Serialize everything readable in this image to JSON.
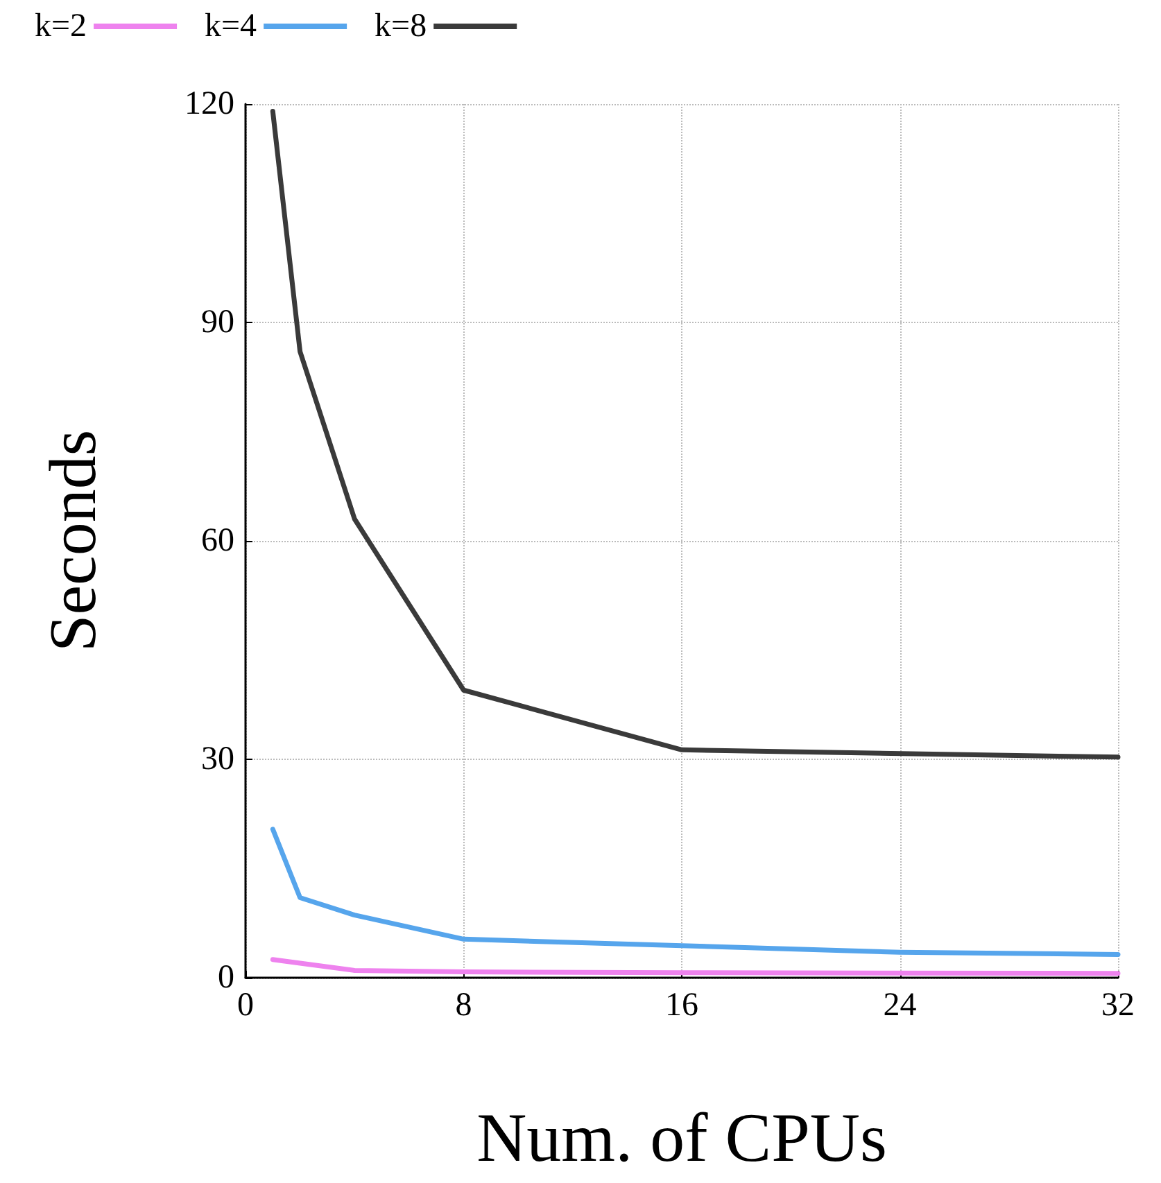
{
  "chart_data": {
    "type": "line",
    "xlabel": "Num. of CPUs",
    "ylabel": "Seconds",
    "xlim": [
      0,
      32
    ],
    "xticks": [
      0,
      8,
      16,
      24,
      32
    ],
    "ylim": [
      0,
      120
    ],
    "yticks": [
      0,
      30,
      60,
      90,
      120
    ],
    "grid": true,
    "legend": "top left",
    "marker": "none",
    "line_style": "solid",
    "series": [
      {
        "name": "k=2",
        "color": "#ee82ee",
        "x": [
          1,
          2,
          4,
          8,
          16,
          32
        ],
        "values": [
          2.5,
          2,
          1,
          0.8,
          0.7,
          0.6
        ]
      },
      {
        "name": "k=4",
        "color": "#56a5ec",
        "x": [
          1,
          2,
          4,
          8,
          16,
          24,
          32
        ],
        "values": [
          20.4,
          11,
          8.6,
          5.3,
          4.4,
          3.5,
          3.2
        ]
      },
      {
        "name": "k=8",
        "color": "#3a3a3a",
        "x": [
          1,
          2,
          4,
          8,
          16,
          32
        ],
        "values": [
          119,
          86,
          63,
          39.5,
          31.3,
          30.3
        ]
      }
    ]
  }
}
